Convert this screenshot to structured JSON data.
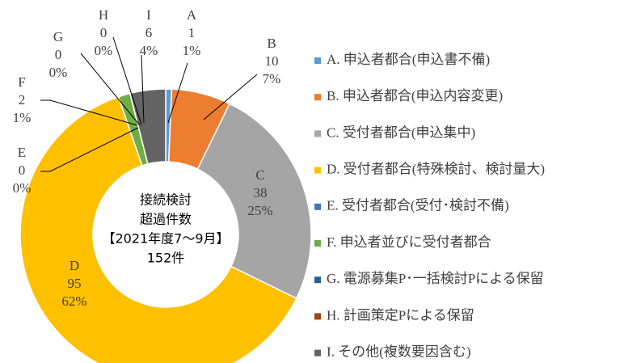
{
  "chart_data": {
    "type": "donut",
    "center_text": [
      "接続検討",
      "超過件数",
      "【2021年度7～9月】",
      "152件"
    ],
    "categories": [
      "A. 申込者都合(申込書不備)",
      "B. 申込者都合(申込内容変更)",
      "C. 受付者都合(申込集中)",
      "D. 受付者都合(特殊検討、検討量大)",
      "E. 受付者都合(受付･検討不備)",
      "F. 申込者並びに受付者都合",
      "G. 電源募集P･一括検討Pによる保留",
      "H. 計画策定Pによる保留",
      "I. その他(複数要因含む)"
    ],
    "letters": [
      "A",
      "B",
      "C",
      "D",
      "E",
      "F",
      "G",
      "H",
      "I"
    ],
    "values": [
      1,
      10,
      38,
      95,
      0,
      2,
      0,
      0,
      6
    ],
    "percent_labels": [
      "1%",
      "7%",
      "25%",
      "62%",
      "0%",
      "1%",
      "0%",
      "0%",
      "4%"
    ],
    "colors": [
      "#5b9bd5",
      "#ed7d31",
      "#a5a5a5",
      "#ffc000",
      "#4472c4",
      "#70ad47",
      "#255e91",
      "#9e480e",
      "#636363"
    ],
    "legend": "right"
  }
}
